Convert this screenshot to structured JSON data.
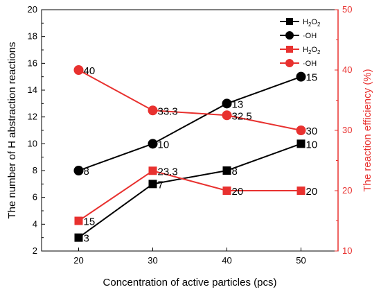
{
  "chart_data": {
    "type": "line",
    "x": [
      20,
      30,
      40,
      50
    ],
    "xlabel": "Concentration of active particles (pcs)",
    "x_ticks": [
      "20",
      "30",
      "40",
      "50"
    ],
    "ylabel_left": "The number of H abstraction reactions",
    "ylim_left": [
      2,
      20
    ],
    "y_ticks_left": [
      "2",
      "4",
      "6",
      "8",
      "10",
      "12",
      "14",
      "16",
      "18",
      "20"
    ],
    "ylabel_right": "The reaction efficiency (%)",
    "ylim_right": [
      10,
      50
    ],
    "y_ticks_right": [
      "10",
      "20",
      "30",
      "40",
      "50"
    ],
    "legend_position": "top-right",
    "series": [
      {
        "name": "H2O2",
        "legend_main": "H",
        "legend_sub1": "2",
        "legend_mid": "O",
        "legend_sub2": "2",
        "axis": "left",
        "marker": "square",
        "color": "#000000",
        "values": [
          3,
          7,
          8,
          10
        ],
        "labels": [
          "3",
          "7",
          "8",
          "10"
        ]
      },
      {
        "name": "·OH",
        "legend_main": "·OH",
        "axis": "left",
        "marker": "circle",
        "color": "#000000",
        "values": [
          8,
          10,
          13,
          15
        ],
        "labels": [
          "8",
          "10",
          "13",
          "15"
        ]
      },
      {
        "name": "H2O2",
        "legend_main": "H",
        "legend_sub1": "2",
        "legend_mid": "O",
        "legend_sub2": "2",
        "axis": "right",
        "marker": "square",
        "color": "#e8312f",
        "values": [
          15,
          23.3,
          20,
          20
        ],
        "labels": [
          "15",
          "23.3",
          "20",
          "20"
        ]
      },
      {
        "name": "·OH",
        "legend_main": "·OH",
        "axis": "right",
        "marker": "circle",
        "color": "#e8312f",
        "values": [
          40,
          33.3,
          32.5,
          30
        ],
        "labels": [
          "40",
          "33.3",
          "32.5",
          "30"
        ]
      }
    ]
  }
}
